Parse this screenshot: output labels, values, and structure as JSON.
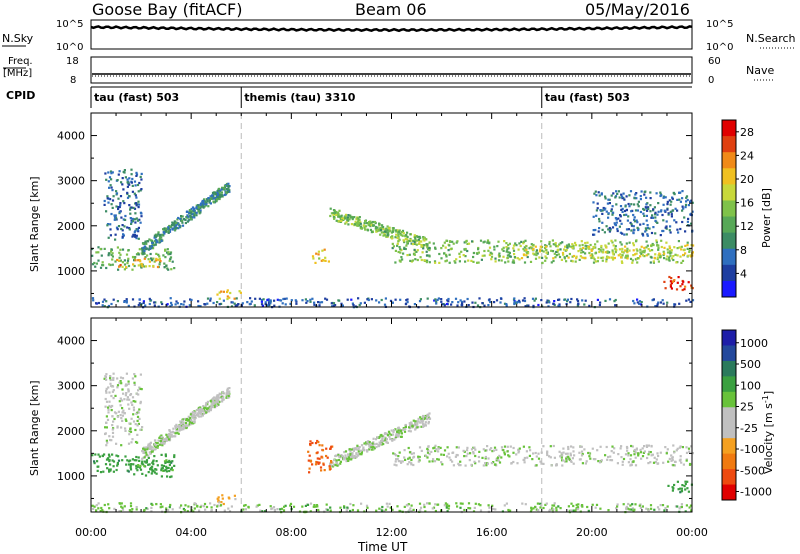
{
  "header": {
    "station": "Goose Bay (fitACF)",
    "beam": "Beam 06",
    "date": "05/May/2016"
  },
  "colors": {
    "power_scale": [
      "#1a1aff",
      "#1e3ea0",
      "#2f6fbf",
      "#3c8c64",
      "#57a857",
      "#7fc24a",
      "#c8d83a",
      "#f0c020",
      "#f08a18",
      "#e04010",
      "#e00000"
    ],
    "velocity_scale": [
      "#1e1ea8",
      "#23489c",
      "#2a7a5c",
      "#3aa040",
      "#68c23a",
      "#c0c0c0",
      "#c0c0c0",
      "#f4a020",
      "#f07a10",
      "#ee4a10",
      "#e00000"
    ],
    "ground_scatter": "#bebebe",
    "timeline": "#000000"
  },
  "top_panels": {
    "nsky": {
      "label": "N.Sky",
      "ytick_top": "10^5",
      "ytick_bottom": "10^0",
      "right_label": "N.Search",
      "right_tick_top": "10^5",
      "right_tick_bottom": "10^0"
    },
    "freq": {
      "label_line1": "Freq.",
      "label_line2": "[MHz]",
      "ytick_top": "18",
      "ytick_bottom": "8",
      "right_label": "Nave",
      "right_tick_top": "60",
      "right_tick_bottom": "0"
    },
    "cpid": {
      "label": "CPID",
      "segments": [
        {
          "name": "tau (fast) 503",
          "start_hour": 0
        },
        {
          "name": "themis (tau) 3310",
          "start_hour": 6
        },
        {
          "name": "tau (fast) 503",
          "start_hour": 18
        }
      ]
    }
  },
  "chart_data": [
    {
      "type": "heatmap",
      "panel": "Power",
      "xlabel": "Time UT",
      "ylabel": "Slant Range [km]",
      "x_ticks": [
        "00:00",
        "04:00",
        "08:00",
        "12:00",
        "16:00",
        "20:00",
        "00:00"
      ],
      "xlim_hours": [
        0,
        24
      ],
      "y_ticks": [
        1000,
        2000,
        3000,
        4000
      ],
      "ylim": [
        200,
        4500
      ],
      "colorbar_label": "Power [dB]",
      "colorbar_ticks": [
        4,
        8,
        12,
        16,
        20,
        24,
        28
      ],
      "colorbar_range": [
        0,
        30
      ],
      "scatter_regions": [
        {
          "t0": 0.0,
          "t1": 3.3,
          "r0": 1050,
          "r1": 1550,
          "value": 12
        },
        {
          "t0": 1.0,
          "t1": 2.8,
          "r0": 1100,
          "r1": 1300,
          "value": 22
        },
        {
          "t0": 2.0,
          "t1": 5.5,
          "r0": 1500,
          "r1": 2900,
          "value": 9,
          "slope": true
        },
        {
          "t0": 0.5,
          "t1": 2.0,
          "r0": 1700,
          "r1": 3300,
          "value": 6
        },
        {
          "t0": 9.5,
          "t1": 13.5,
          "r0": 1300,
          "r1": 2300,
          "value": 14,
          "slope": true
        },
        {
          "t0": 12.0,
          "t1": 23.8,
          "r0": 1200,
          "r1": 1700,
          "value": 14
        },
        {
          "t0": 17.0,
          "t1": 24.0,
          "r0": 1300,
          "r1": 1600,
          "value": 18
        },
        {
          "t0": 20.0,
          "t1": 24.0,
          "r0": 1800,
          "r1": 2800,
          "value": 6
        },
        {
          "t0": 22.8,
          "t1": 24.0,
          "r0": 600,
          "r1": 900,
          "value": 28
        },
        {
          "t0": 8.8,
          "t1": 9.5,
          "r0": 1200,
          "r1": 1500,
          "value": 20
        },
        {
          "t0": 5.0,
          "t1": 6.0,
          "r0": 400,
          "r1": 600,
          "value": 20
        },
        {
          "t0": 0.0,
          "t1": 24.0,
          "r0": 220,
          "r1": 420,
          "value": 5
        }
      ]
    },
    {
      "type": "heatmap",
      "panel": "Velocity",
      "xlabel": "Time UT",
      "ylabel": "Slant Range [km]",
      "x_ticks": [
        "00:00",
        "04:00",
        "08:00",
        "12:00",
        "16:00",
        "20:00",
        "00:00"
      ],
      "xlim_hours": [
        0,
        24
      ],
      "y_ticks": [
        1000,
        2000,
        3000,
        4000
      ],
      "ylim": [
        200,
        4500
      ],
      "colorbar_label": "Velocity [m s^-1]",
      "colorbar_ticks": [
        1000,
        500,
        100,
        25,
        -25,
        -100,
        -500,
        -1000
      ],
      "scatter_regions": [
        {
          "t0": 0.0,
          "t1": 3.3,
          "r0": 1100,
          "r1": 1500,
          "value": 200
        },
        {
          "t0": 1.5,
          "t1": 3.3,
          "r0": 1000,
          "r1": 1400,
          "value": 150
        },
        {
          "t0": 2.0,
          "t1": 5.5,
          "r0": 1500,
          "r1": 2900,
          "value": 0,
          "slope": true
        },
        {
          "t0": 0.5,
          "t1": 2.0,
          "r0": 1700,
          "r1": 3300,
          "value": 0
        },
        {
          "t0": 9.5,
          "t1": 13.5,
          "r0": 1300,
          "r1": 2300,
          "value": 0,
          "slope": true
        },
        {
          "t0": 12.0,
          "t1": 24.0,
          "r0": 1250,
          "r1": 1700,
          "value": 0
        },
        {
          "t0": 8.6,
          "t1": 9.6,
          "r0": 1100,
          "r1": 1800,
          "value": -500
        },
        {
          "t0": 23.0,
          "t1": 24.0,
          "r0": 600,
          "r1": 900,
          "value": 200
        },
        {
          "t0": 5.0,
          "t1": 6.0,
          "r0": 400,
          "r1": 600,
          "value": -150
        },
        {
          "t0": 0.0,
          "t1": 24.0,
          "r0": 220,
          "r1": 420,
          "value": 50
        }
      ]
    }
  ]
}
